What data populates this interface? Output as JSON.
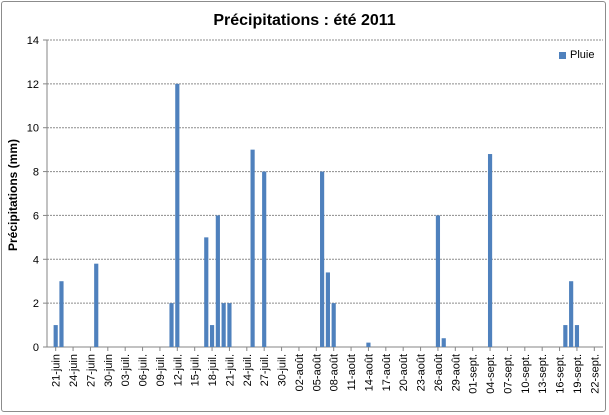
{
  "chart_data": {
    "type": "bar",
    "title": "Précipitations : été 2011",
    "ylabel": "Précipitations (mm)",
    "xlabel": "",
    "ylim": [
      0,
      14
    ],
    "yticks": [
      0,
      2,
      4,
      6,
      8,
      10,
      12,
      14
    ],
    "grid": true,
    "legend_position": "top-right",
    "bar_color": "#4f81bd",
    "x_tick_labels": [
      "21-juin",
      "24-juin",
      "27-juin",
      "30-juin",
      "03-juil.",
      "06-juil.",
      "09-juil.",
      "12-juil.",
      "15-juil.",
      "18-juil.",
      "21-juil.",
      "24-juil.",
      "27-juil.",
      "30-juil.",
      "02-août",
      "05-août",
      "08-août",
      "11-août",
      "14-août",
      "17-août",
      "20-août",
      "23-août",
      "26-août",
      "29-août",
      "01-sept.",
      "04-sept.",
      "07-sept.",
      "10-sept.",
      "13-sept.",
      "16-sept.",
      "19-sept.",
      "22-sept."
    ],
    "series": [
      {
        "name": "Pluie",
        "points": [
          {
            "date": "2011-06-21",
            "value": 1.0
          },
          {
            "date": "2011-06-22",
            "value": 3.0
          },
          {
            "date": "2011-06-28",
            "value": 3.8
          },
          {
            "date": "2011-07-11",
            "value": 2.0
          },
          {
            "date": "2011-07-12",
            "value": 12.0
          },
          {
            "date": "2011-07-17",
            "value": 5.0
          },
          {
            "date": "2011-07-18",
            "value": 1.0
          },
          {
            "date": "2011-07-19",
            "value": 6.0
          },
          {
            "date": "2011-07-20",
            "value": 2.0
          },
          {
            "date": "2011-07-21",
            "value": 2.0
          },
          {
            "date": "2011-07-25",
            "value": 9.0
          },
          {
            "date": "2011-07-27",
            "value": 8.0
          },
          {
            "date": "2011-08-06",
            "value": 8.0
          },
          {
            "date": "2011-08-07",
            "value": 3.4
          },
          {
            "date": "2011-08-08",
            "value": 2.0
          },
          {
            "date": "2011-08-14",
            "value": 0.2
          },
          {
            "date": "2011-08-26",
            "value": 6.0
          },
          {
            "date": "2011-08-27",
            "value": 0.4
          },
          {
            "date": "2011-09-04",
            "value": 8.8
          },
          {
            "date": "2011-09-17",
            "value": 1.0
          },
          {
            "date": "2011-09-18",
            "value": 3.0
          },
          {
            "date": "2011-09-19",
            "value": 1.0
          }
        ]
      }
    ]
  }
}
